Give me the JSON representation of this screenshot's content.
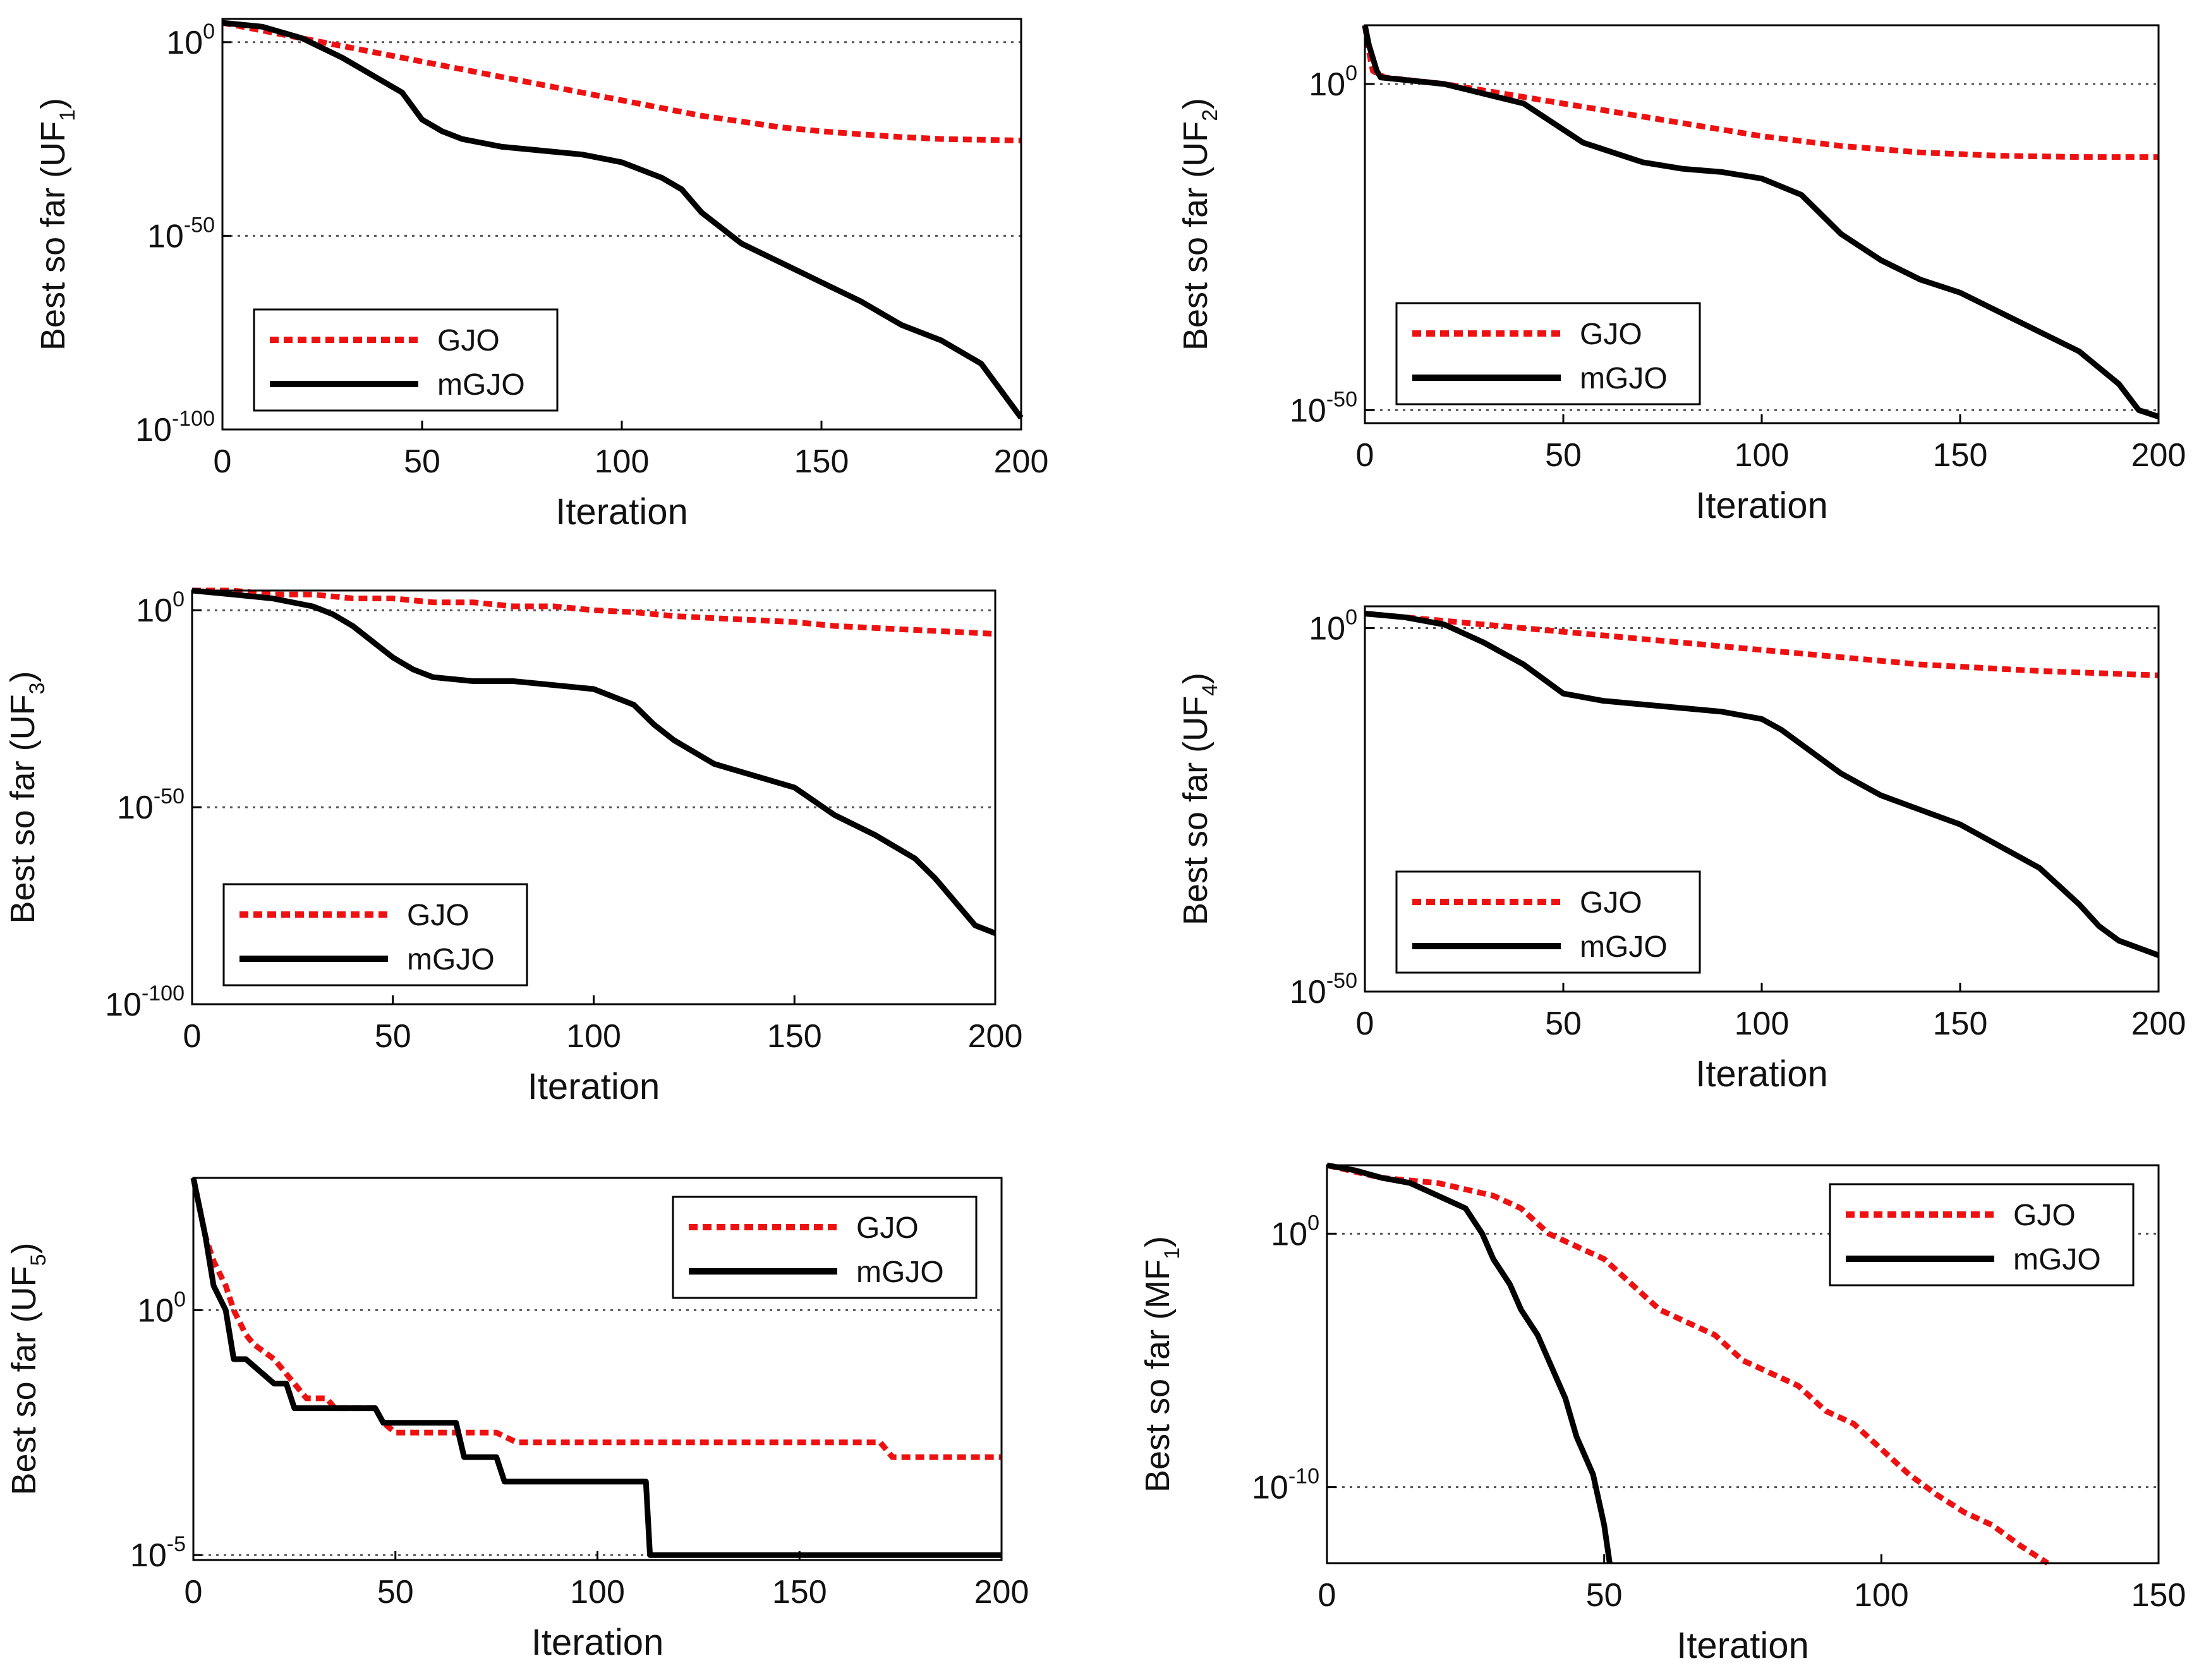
{
  "style": {
    "gjo_color": "#ee1111",
    "mgjo_color": "#000000",
    "axis_color": "#000000"
  },
  "chart_data": [
    {
      "type": "line",
      "yscale": "log",
      "ylabel_prefix": "Best so far (UF",
      "ylabel_sub": "1",
      "xlabel": "Iteration",
      "xlim": [
        0,
        200
      ],
      "xticks": [
        "0",
        "50",
        "100",
        "150",
        "200"
      ],
      "ylim_exp": [
        -100,
        6
      ],
      "yticks": [
        {
          "base": "10",
          "exp": "0"
        },
        {
          "base": "10",
          "exp": "-50"
        },
        {
          "base": "10",
          "exp": "-100"
        }
      ],
      "ytick_exps": [
        0,
        -50,
        -100
      ],
      "legend": [
        "GJO",
        "mGJO"
      ],
      "legend_position": "lower-left",
      "series": [
        {
          "name": "GJO",
          "x": [
            0,
            10,
            20,
            30,
            40,
            50,
            60,
            70,
            80,
            90,
            100,
            110,
            120,
            130,
            140,
            150,
            160,
            170,
            180,
            190,
            200
          ],
          "y_exp": [
            5,
            3,
            1,
            -1,
            -3,
            -5,
            -7,
            -9,
            -11,
            -13,
            -15,
            -17,
            -19,
            -20.5,
            -22,
            -23,
            -23.8,
            -24.5,
            -25,
            -25.2,
            -25.4
          ]
        },
        {
          "name": "mGJO",
          "x": [
            0,
            10,
            20,
            30,
            40,
            45,
            50,
            55,
            60,
            70,
            80,
            90,
            100,
            110,
            115,
            120,
            130,
            140,
            150,
            160,
            170,
            180,
            190,
            195,
            200
          ],
          "y_exp": [
            5,
            4,
            1,
            -4,
            -10,
            -13,
            -20,
            -23,
            -25,
            -27,
            -28,
            -29,
            -31,
            -35,
            -38,
            -44,
            -52,
            -57,
            -62,
            -67,
            -73,
            -77,
            -83,
            -90,
            -97
          ]
        }
      ]
    },
    {
      "type": "line",
      "yscale": "log",
      "ylabel_prefix": "Best so far (UF",
      "ylabel_sub": "2",
      "xlabel": "Iteration",
      "xlim": [
        0,
        200
      ],
      "xticks": [
        "0",
        "50",
        "100",
        "150",
        "200"
      ],
      "ylim_exp": [
        -52,
        9
      ],
      "yticks": [
        {
          "base": "10",
          "exp": "0"
        },
        {
          "base": "10",
          "exp": "-50"
        }
      ],
      "ytick_exps": [
        0,
        -50
      ],
      "legend": [
        "GJO",
        "mGJO"
      ],
      "legend_position": "lower-left",
      "series": [
        {
          "name": "GJO",
          "x": [
            0,
            1,
            2,
            5,
            20,
            40,
            60,
            80,
            100,
            120,
            140,
            160,
            180,
            200
          ],
          "y_exp": [
            9,
            5,
            2,
            1,
            0,
            -2,
            -4,
            -6,
            -8,
            -9.5,
            -10.5,
            -11,
            -11.2,
            -11.2
          ]
        },
        {
          "name": "mGJO",
          "x": [
            0,
            1,
            3,
            4,
            20,
            40,
            50,
            55,
            60,
            70,
            80,
            90,
            100,
            110,
            115,
            120,
            130,
            140,
            150,
            160,
            170,
            180,
            190,
            195,
            200
          ],
          "y_exp": [
            9,
            6,
            2,
            1,
            0,
            -3,
            -7,
            -9,
            -10,
            -12,
            -13,
            -13.5,
            -14.5,
            -17,
            -20,
            -23,
            -27,
            -30,
            -32,
            -35,
            -38,
            -41,
            -46,
            -50,
            -51
          ]
        }
      ]
    },
    {
      "type": "line",
      "yscale": "log",
      "ylabel_prefix": "Best so far (UF",
      "ylabel_sub": "3",
      "xlabel": "Iteration",
      "xlim": [
        0,
        200
      ],
      "xticks": [
        "0",
        "50",
        "100",
        "150",
        "200"
      ],
      "ylim_exp": [
        -100,
        5
      ],
      "yticks": [
        {
          "base": "10",
          "exp": "0"
        },
        {
          "base": "10",
          "exp": "-50"
        },
        {
          "base": "10",
          "exp": "-100"
        }
      ],
      "ytick_exps": [
        0,
        -50,
        -100
      ],
      "legend": [
        "GJO",
        "mGJO"
      ],
      "legend_position": "lower-left",
      "series": [
        {
          "name": "GJO",
          "x": [
            0,
            10,
            20,
            30,
            40,
            50,
            60,
            70,
            80,
            90,
            100,
            110,
            120,
            130,
            140,
            150,
            160,
            170,
            180,
            190,
            200
          ],
          "y_exp": [
            5,
            5,
            4,
            4,
            3,
            3,
            2,
            2,
            1,
            1,
            0,
            -0.5,
            -1.5,
            -2,
            -2.5,
            -3,
            -4,
            -4.5,
            -5,
            -5.5,
            -6
          ]
        },
        {
          "name": "mGJO",
          "x": [
            0,
            10,
            20,
            30,
            35,
            40,
            45,
            50,
            55,
            60,
            70,
            80,
            90,
            100,
            110,
            115,
            120,
            130,
            140,
            150,
            160,
            170,
            180,
            185,
            190,
            195,
            200
          ],
          "y_exp": [
            5,
            4,
            3,
            1,
            -1,
            -4,
            -8,
            -12,
            -15,
            -17,
            -18,
            -18,
            -19,
            -20,
            -24,
            -29,
            -33,
            -39,
            -42,
            -45,
            -52,
            -57,
            -63,
            -68,
            -74,
            -80,
            -82
          ]
        }
      ]
    },
    {
      "type": "line",
      "yscale": "log",
      "ylabel_prefix": "Best so far (UF",
      "ylabel_sub": "4",
      "xlabel": "Iteration",
      "xlim": [
        0,
        200
      ],
      "xticks": [
        "0",
        "50",
        "100",
        "150",
        "200"
      ],
      "ylim_exp": [
        -50,
        3
      ],
      "yticks": [
        {
          "base": "10",
          "exp": "0"
        },
        {
          "base": "10",
          "exp": "-50"
        }
      ],
      "ytick_exps": [
        0,
        -50
      ],
      "legend": [
        "GJO",
        "mGJO"
      ],
      "legend_position": "lower-left",
      "series": [
        {
          "name": "GJO",
          "x": [
            0,
            10,
            20,
            30,
            40,
            50,
            60,
            70,
            80,
            90,
            100,
            110,
            120,
            130,
            140,
            150,
            160,
            170,
            180,
            190,
            200
          ],
          "y_exp": [
            2,
            1.5,
            1,
            0.5,
            0,
            -0.5,
            -1,
            -1.5,
            -2,
            -2.5,
            -3,
            -3.5,
            -4,
            -4.5,
            -5,
            -5.3,
            -5.6,
            -5.9,
            -6.1,
            -6.3,
            -6.5
          ]
        },
        {
          "name": "mGJO",
          "x": [
            0,
            10,
            20,
            30,
            40,
            45,
            50,
            60,
            70,
            80,
            90,
            100,
            105,
            110,
            120,
            130,
            140,
            150,
            160,
            170,
            180,
            185,
            190,
            200
          ],
          "y_exp": [
            2,
            1.5,
            0.5,
            -2,
            -5,
            -7,
            -9,
            -10,
            -10.5,
            -11,
            -11.5,
            -12.5,
            -14,
            -16,
            -20,
            -23,
            -25,
            -27,
            -30,
            -33,
            -38,
            -41,
            -43,
            -45
          ]
        }
      ]
    },
    {
      "type": "line",
      "yscale": "log",
      "ylabel_prefix": "Best so far (UF",
      "ylabel_sub": "5",
      "xlabel": "Iteration",
      "xlim": [
        0,
        200
      ],
      "xticks": [
        "0",
        "50",
        "100",
        "150",
        "200"
      ],
      "ylim_exp": [
        -5.1,
        2.7
      ],
      "yticks": [
        {
          "base": "10",
          "exp": "0"
        },
        {
          "base": "10",
          "exp": "-5"
        }
      ],
      "ytick_exps": [
        0,
        -5
      ],
      "legend": [
        "GJO",
        "mGJO"
      ],
      "legend_position": "upper-right",
      "series": [
        {
          "name": "GJO",
          "x": [
            0,
            3,
            5,
            8,
            10,
            13,
            15,
            20,
            23,
            25,
            28,
            33,
            35,
            45,
            47,
            50,
            75,
            80,
            90,
            95,
            170,
            173,
            175,
            200
          ],
          "y_exp": [
            2.7,
            1.5,
            1,
            0.5,
            0,
            -0.5,
            -0.7,
            -1,
            -1.3,
            -1.5,
            -1.8,
            -1.8,
            -2,
            -2,
            -2.3,
            -2.5,
            -2.5,
            -2.7,
            -2.7,
            -2.7,
            -2.7,
            -3,
            -3,
            -3
          ]
        },
        {
          "name": "mGJO",
          "x": [
            0,
            3,
            5,
            8,
            10,
            13,
            20,
            23,
            25,
            45,
            47,
            65,
            67,
            75,
            77,
            112,
            113,
            200
          ],
          "y_exp": [
            2.7,
            1.5,
            0.5,
            0,
            -1,
            -1,
            -1.5,
            -1.5,
            -2,
            -2,
            -2.3,
            -2.3,
            -3,
            -3,
            -3.5,
            -3.5,
            -5,
            -5
          ]
        }
      ]
    },
    {
      "type": "line",
      "yscale": "log",
      "ylabel_prefix": "Best so far (MF",
      "ylabel_sub": "1",
      "xlabel": "Iteration",
      "xlim": [
        0,
        150
      ],
      "xticks": [
        "0",
        "50",
        "100",
        "150"
      ],
      "ylim_exp": [
        -13,
        2.7
      ],
      "yticks": [
        {
          "base": "10",
          "exp": "0"
        },
        {
          "base": "10",
          "exp": "-10"
        }
      ],
      "ytick_exps": [
        0,
        -10
      ],
      "legend": [
        "GJO",
        "mGJO"
      ],
      "legend_position": "upper-right",
      "series": [
        {
          "name": "GJO",
          "x": [
            0,
            10,
            20,
            30,
            35,
            40,
            45,
            50,
            55,
            60,
            65,
            70,
            75,
            80,
            85,
            90,
            95,
            100,
            105,
            110,
            115,
            120,
            125,
            130
          ],
          "y_exp": [
            2.7,
            2.2,
            2,
            1.5,
            1,
            0,
            -0.5,
            -1,
            -2,
            -3,
            -3.5,
            -4,
            -5,
            -5.5,
            -6,
            -7,
            -7.5,
            -8.5,
            -9.5,
            -10.3,
            -11,
            -11.5,
            -12.3,
            -13
          ]
        },
        {
          "name": "mGJO",
          "x": [
            0,
            5,
            10,
            15,
            20,
            25,
            28,
            30,
            33,
            35,
            38,
            40,
            43,
            45,
            48,
            50,
            51
          ],
          "y_exp": [
            2.7,
            2.5,
            2.2,
            2,
            1.5,
            1,
            0,
            -1,
            -2,
            -3,
            -4,
            -5,
            -6.5,
            -8,
            -9.5,
            -11.5,
            -13
          ]
        }
      ]
    }
  ]
}
